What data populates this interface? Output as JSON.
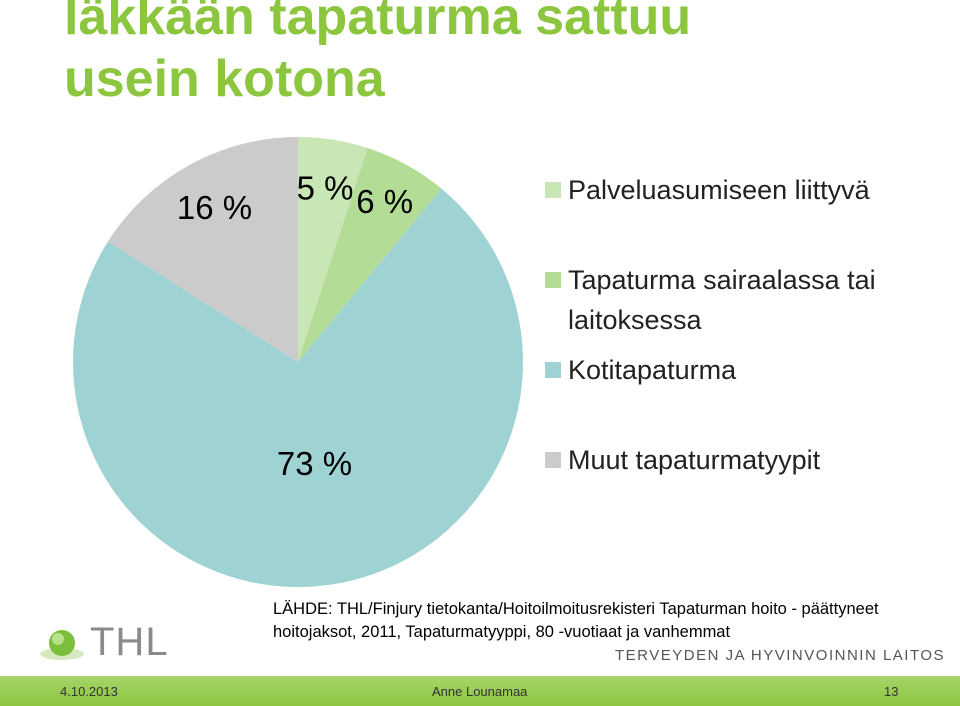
{
  "chart_data": {
    "type": "pie",
    "title": "läkkään tapaturma sattuu usein kotona",
    "categories": [
      "Palveluasumiseen liittyvä",
      "Tapaturma sairaalassa tai laitoksessa",
      "Kotitapaturma",
      "Muut tapaturmatyypit"
    ],
    "values": [
      5,
      6,
      73,
      16
    ],
    "value_labels": [
      "5 %",
      "6 %",
      "73 %",
      "16 %"
    ],
    "colors": [
      "#c9e6b5",
      "#b3dc96",
      "#9fd2d3",
      "#cbcbcb"
    ],
    "legend": "right"
  },
  "source": "LÄHDE: THL/Finjury tietokanta/Hoitoilmoitusrekisteri Tapaturman hoito - päättyneet hoitojaksot, 2011, Tapaturmatyyppi, 80 -vuotiaat ja vanhemmat",
  "logo": {
    "short": "THL",
    "long": "TERVEYDEN JA HYVINVOINNIN LAITOS"
  },
  "footer": {
    "date": "4.10.2013",
    "author": "Anne Lounamaa",
    "page": "13"
  }
}
